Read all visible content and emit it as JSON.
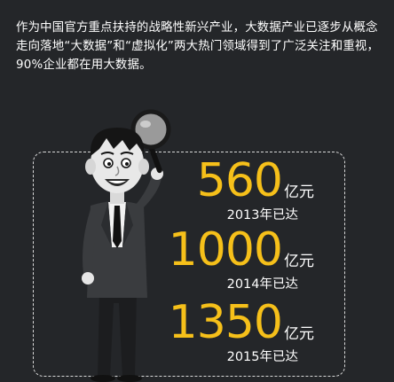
{
  "intro": "作为中国官方重点扶持的战略性新兴产业，大数据产业已逐步从概念走向落地“大数据”和“虚拟化”两大热门领域得到了广泛关注和重视，90%企业都在用大数据。",
  "mascot": {
    "icon": "magnifying-glass-cartoon-man"
  },
  "colors": {
    "background": "#242629",
    "accent": "#f6c01a",
    "text": "#ffffff"
  },
  "stats": [
    {
      "value": "560",
      "unit": "亿元",
      "year": "2013年已达"
    },
    {
      "value": "1000",
      "unit": "亿元",
      "year": "2014年已达"
    },
    {
      "value": "1350",
      "unit": "亿元",
      "year": "2015年已达"
    }
  ]
}
